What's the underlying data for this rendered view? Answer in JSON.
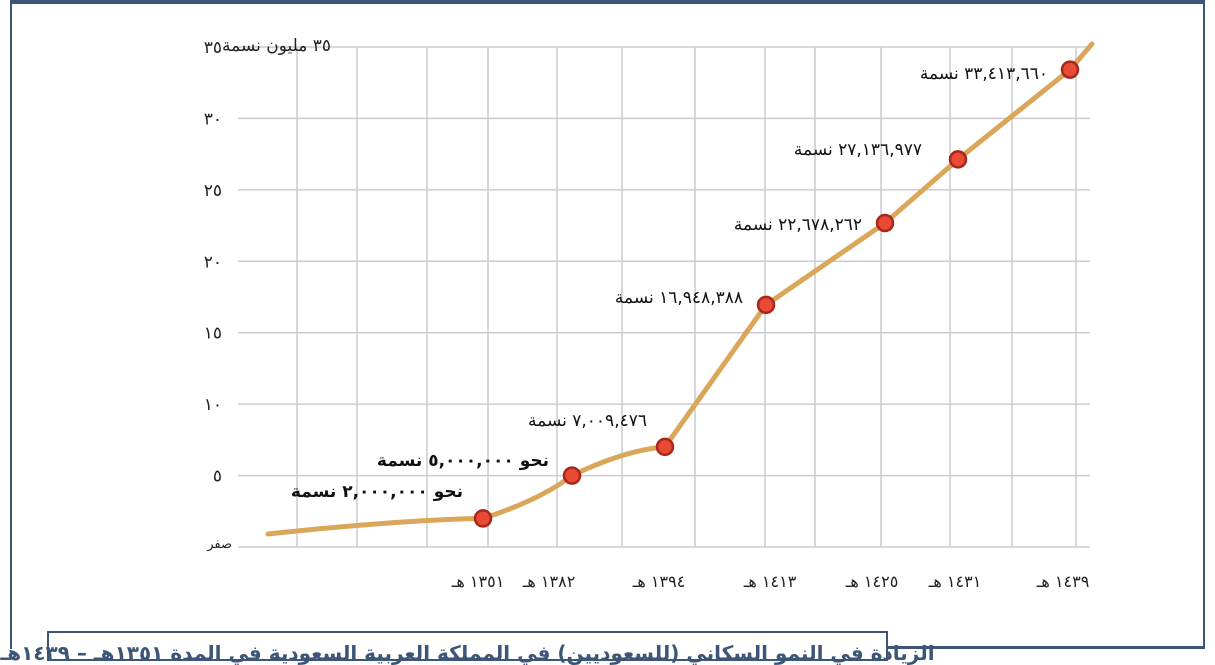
{
  "chart_data": {
    "type": "line",
    "title": "",
    "caption": "الزيادة في النمو السكاني (للسعوديين) في المملكة العربية السعودية في المدة ١٣٥١هـ – ١٤٣٩هـ",
    "ylabel": "٣٥ مليون نسمة",
    "ylim": [
      0,
      35
    ],
    "y_ticks": [
      {
        "value": 0,
        "label": "صفر"
      },
      {
        "value": 5,
        "label": "٥"
      },
      {
        "value": 10,
        "label": "١٠"
      },
      {
        "value": 15,
        "label": "١٥"
      },
      {
        "value": 20,
        "label": "٢٠"
      },
      {
        "value": 25,
        "label": "٢٥"
      },
      {
        "value": 30,
        "label": "٣٠"
      },
      {
        "value": 35,
        "label": "٣٥"
      }
    ],
    "grid": true,
    "line_color": "#d9a65a",
    "marker_color": "#e84a35",
    "marker_edge_color": "#a8261a",
    "series": [
      {
        "points": [
          {
            "x": "١٣٥١ هـ",
            "value": 2000000,
            "label": "نحو ٢,٠٠٠,٠٠٠ نسمة"
          },
          {
            "x": "١٣٨٢ هـ",
            "value": 5000000,
            "label": "نحو ٥,٠٠٠,٠٠٠ نسمة"
          },
          {
            "x": "١٣٩٤ هـ",
            "value": 7009476,
            "label": "٧,٠٠٩,٤٧٦ نسمة"
          },
          {
            "x": "١٤١٣ هـ",
            "value": 16948388,
            "label": "١٦,٩٤٨,٣٨٨ نسمة"
          },
          {
            "x": "١٤٢٥ هـ",
            "value": 22678262,
            "label": "٢٢,٦٧٨,٢٦٢ نسمة"
          },
          {
            "x": "١٤٣١ هـ",
            "value": 27136977,
            "label": "٢٧,١٣٦,٩٧٧ نسمة"
          },
          {
            "x": "١٤٣٩ هـ",
            "value": 33413660,
            "label": "٣٣,٤١٣,٦٦٠ نسمة"
          }
        ]
      }
    ]
  }
}
